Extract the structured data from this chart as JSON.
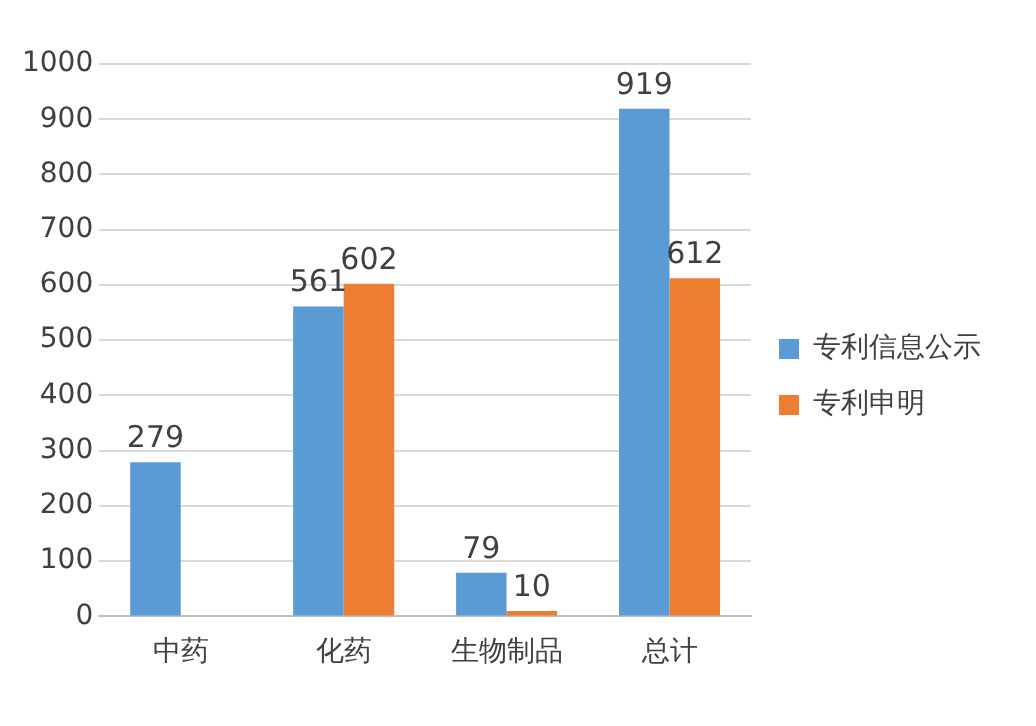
{
  "chart_data": {
    "type": "bar",
    "categories": [
      "中药",
      "化药",
      "生物制品",
      "总计"
    ],
    "series": [
      {
        "name": "专利信息公示",
        "color": "#5b9bd5",
        "values": [
          279,
          561,
          79,
          919
        ]
      },
      {
        "name": "专利申明",
        "color": "#ed7d31",
        "values": [
          null,
          602,
          10,
          612
        ]
      }
    ],
    "ylim": [
      0,
      1000
    ],
    "yticks": [
      0,
      100,
      200,
      300,
      400,
      500,
      600,
      700,
      800,
      900,
      1000
    ],
    "grid": "y",
    "legend": "right",
    "data_labels": true
  }
}
